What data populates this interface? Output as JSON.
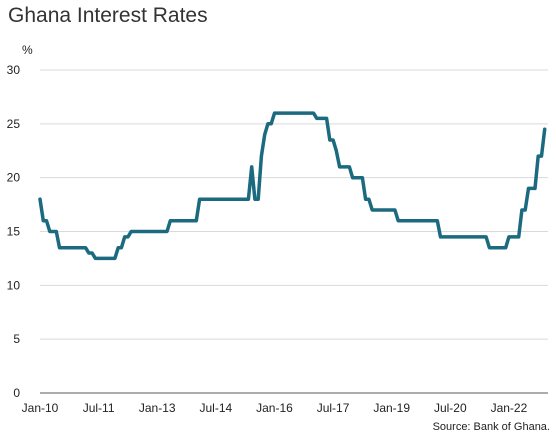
{
  "chart_data": {
    "type": "line",
    "title": "Ghana Interest Rates",
    "ylabel": "%",
    "xlabel": "",
    "source": "Source: Bank of Ghana.",
    "ylim": [
      0,
      30
    ],
    "yticks": [
      0,
      5,
      10,
      15,
      20,
      25,
      30
    ],
    "xlim": [
      "2010-01",
      "2023-01"
    ],
    "xticks": [
      {
        "label": "Jan-10",
        "date": "2010-01"
      },
      {
        "label": "Jul-11",
        "date": "2011-07"
      },
      {
        "label": "Jan-13",
        "date": "2013-01"
      },
      {
        "label": "Jul-14",
        "date": "2014-07"
      },
      {
        "label": "Jan-16",
        "date": "2016-01"
      },
      {
        "label": "Jul-17",
        "date": "2017-07"
      },
      {
        "label": "Jan-19",
        "date": "2019-01"
      },
      {
        "label": "Jul-20",
        "date": "2020-07"
      },
      {
        "label": "Jan-22",
        "date": "2022-01"
      }
    ],
    "grid": "horizontal",
    "series": [
      {
        "name": "",
        "color": "#1b6a80",
        "points": [
          [
            "2010-01",
            18.0
          ],
          [
            "2010-02",
            16.0
          ],
          [
            "2010-03",
            16.0
          ],
          [
            "2010-04",
            15.0
          ],
          [
            "2010-06",
            15.0
          ],
          [
            "2010-07",
            13.5
          ],
          [
            "2011-03",
            13.5
          ],
          [
            "2011-04",
            13.0
          ],
          [
            "2011-05",
            13.0
          ],
          [
            "2011-06",
            12.5
          ],
          [
            "2011-12",
            12.5
          ],
          [
            "2012-01",
            13.5
          ],
          [
            "2012-02",
            13.5
          ],
          [
            "2012-03",
            14.5
          ],
          [
            "2012-04",
            14.5
          ],
          [
            "2012-05",
            15.0
          ],
          [
            "2013-04",
            15.0
          ],
          [
            "2013-05",
            16.0
          ],
          [
            "2014-01",
            16.0
          ],
          [
            "2014-02",
            18.0
          ],
          [
            "2015-05",
            18.0
          ],
          [
            "2015-06",
            21.0
          ],
          [
            "2015-07",
            18.0
          ],
          [
            "2015-08",
            18.0
          ],
          [
            "2015-09",
            22.0
          ],
          [
            "2015-10",
            24.0
          ],
          [
            "2015-11",
            25.0
          ],
          [
            "2015-12",
            25.0
          ],
          [
            "2016-01",
            26.0
          ],
          [
            "2017-01",
            26.0
          ],
          [
            "2017-02",
            25.5
          ],
          [
            "2017-05",
            25.5
          ],
          [
            "2017-06",
            23.5
          ],
          [
            "2017-07",
            23.5
          ],
          [
            "2017-08",
            22.5
          ],
          [
            "2017-09",
            21.0
          ],
          [
            "2017-12",
            21.0
          ],
          [
            "2018-01",
            20.0
          ],
          [
            "2018-04",
            20.0
          ],
          [
            "2018-05",
            18.0
          ],
          [
            "2018-06",
            18.0
          ],
          [
            "2018-07",
            17.0
          ],
          [
            "2019-02",
            17.0
          ],
          [
            "2019-03",
            16.0
          ],
          [
            "2020-03",
            16.0
          ],
          [
            "2020-04",
            14.5
          ],
          [
            "2021-06",
            14.5
          ],
          [
            "2021-07",
            13.5
          ],
          [
            "2021-12",
            13.5
          ],
          [
            "2022-01",
            14.5
          ],
          [
            "2022-04",
            14.5
          ],
          [
            "2022-05",
            17.0
          ],
          [
            "2022-06",
            17.0
          ],
          [
            "2022-07",
            19.0
          ],
          [
            "2022-09",
            19.0
          ],
          [
            "2022-10",
            22.0
          ],
          [
            "2022-11",
            22.0
          ],
          [
            "2022-12",
            24.5
          ]
        ]
      }
    ]
  }
}
